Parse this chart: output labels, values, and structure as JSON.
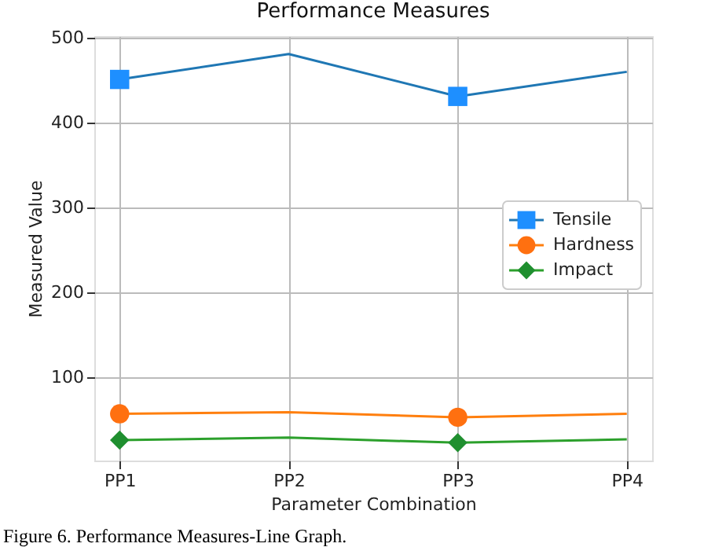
{
  "chart_data": {
    "type": "line",
    "title": "Performance Measures",
    "xlabel": "Parameter Combination",
    "ylabel": "Measured Value",
    "categories": [
      "PP1",
      "PP2",
      "PP3",
      "PP4"
    ],
    "series": [
      {
        "name": "Tensile",
        "color": "#1f77b4",
        "values": [
          451,
          481,
          431,
          460
        ],
        "marker": "none"
      },
      {
        "name": "Hardness",
        "color": "#ff7f0e",
        "values": [
          57,
          59,
          53,
          57
        ],
        "marker": "none"
      },
      {
        "name": "Impact",
        "color": "#2ca02c",
        "values": [
          26,
          29,
          23,
          27
        ],
        "marker": "none"
      },
      {
        "type": "scatter",
        "color": "#1e8fff",
        "values": [
          451,
          null,
          431,
          null
        ],
        "marker": "square"
      },
      {
        "type": "scatter",
        "color": "#ff7010",
        "values": [
          57,
          null,
          53,
          null
        ],
        "marker": "circle"
      },
      {
        "type": "scatter",
        "color": "#1f8f2f",
        "values": [
          26,
          null,
          23,
          null
        ],
        "marker": "diamond"
      }
    ],
    "ylim": [
      2,
      502
    ],
    "yticks": [
      100,
      200,
      300,
      400,
      500
    ],
    "grid": true,
    "legend": "right",
    "annotations": [
      "Figure 6. Performance Measures-Line Graph."
    ]
  }
}
